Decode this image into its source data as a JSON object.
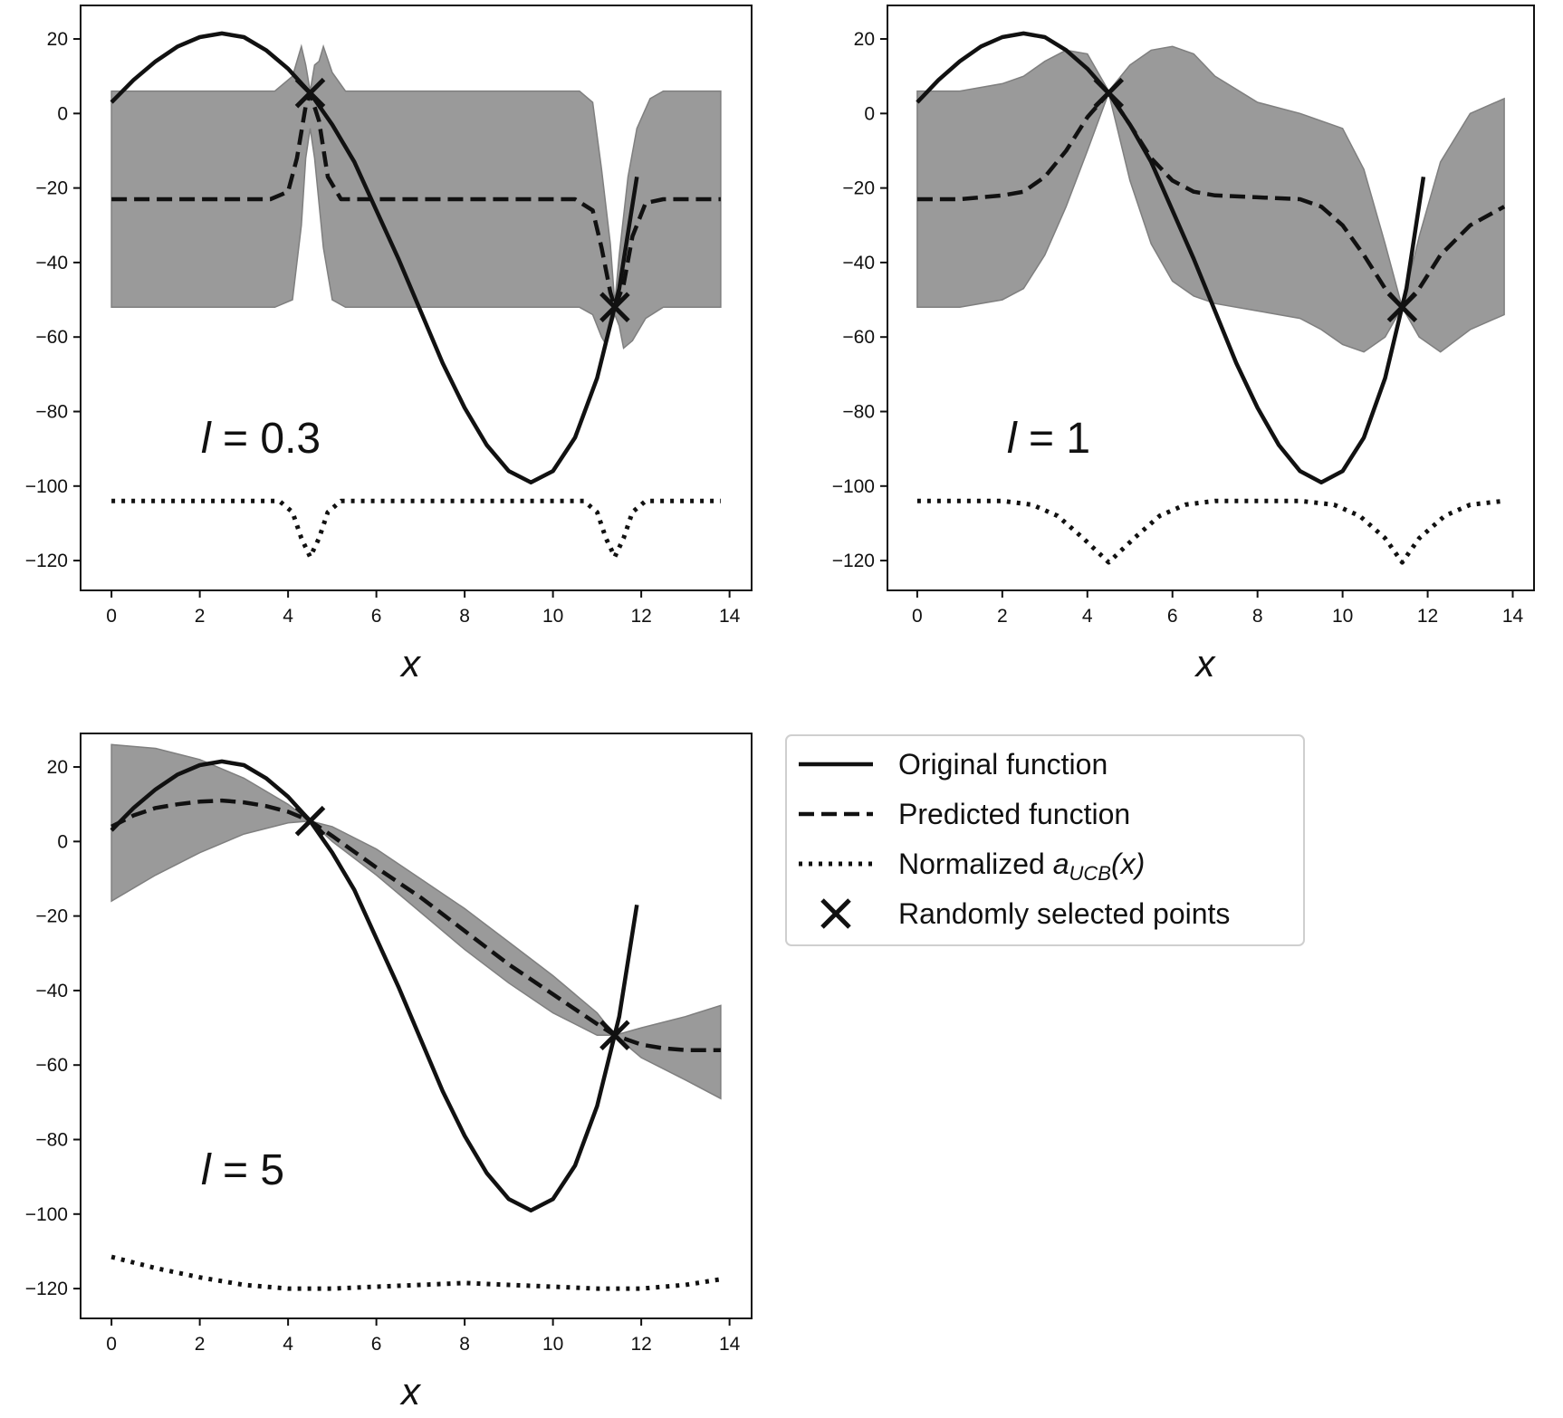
{
  "chart_data": {
    "type": "line",
    "layout": "2x2 grid of panels, legend in bottom-right cell",
    "xlabel": "x",
    "xlim": [
      -0.7,
      14.5
    ],
    "ylim": [
      -128,
      29
    ],
    "x_ticks": [
      0,
      2,
      4,
      6,
      8,
      10,
      12,
      14
    ],
    "y_ticks": [
      20,
      0,
      -20,
      -40,
      -60,
      -80,
      -100,
      -120
    ],
    "grid": false,
    "colors": {
      "line": "#111111",
      "band": "#9a9a9a",
      "band_edge": "#7f7f7f"
    },
    "legend": {
      "placement": "bottom-right cell",
      "entries": [
        {
          "label": "Original function",
          "style": "solid"
        },
        {
          "label": "Predicted function",
          "style": "dashed"
        },
        {
          "label_main": "Normalized ",
          "label_math": "a",
          "label_sub": "UCB",
          "label_tail": "(x)",
          "style": "dotted"
        },
        {
          "label": "Randomly selected points",
          "style": "x-marker"
        }
      ]
    },
    "original_function": {
      "style": "solid",
      "x": [
        0,
        0.5,
        1,
        1.5,
        2,
        2.5,
        3,
        3.5,
        4,
        4.5,
        5,
        5.5,
        6,
        6.5,
        7,
        7.5,
        8,
        8.5,
        9,
        9.5,
        10,
        10.5,
        11,
        11.5,
        11.9
      ],
      "y": [
        3,
        9,
        14,
        18,
        20.5,
        21.5,
        20.5,
        17,
        12,
        5.5,
        -3,
        -13,
        -26,
        -39,
        -53,
        -67,
        -79,
        -89,
        -96,
        -99,
        -96,
        -87,
        -71,
        -47,
        -17
      ]
    },
    "selected_points": {
      "marker": "x",
      "x": [
        4.5,
        11.4
      ],
      "y": [
        5.5,
        -52
      ]
    },
    "panels": [
      {
        "annotation_var": "l",
        "annotation_value": "= 0.3",
        "predicted": {
          "x": [
            0,
            3.6,
            4.0,
            4.2,
            4.4,
            4.5,
            4.7,
            4.9,
            5.2,
            6,
            10.5,
            10.9,
            11.1,
            11.3,
            11.4,
            11.6,
            11.8,
            12.1,
            12.5,
            13.8
          ],
          "y": [
            -23,
            -23,
            -21,
            -12,
            2,
            5.5,
            -2,
            -17,
            -23,
            -23,
            -23,
            -26,
            -36,
            -48,
            -52,
            -46,
            -33,
            -24,
            -23,
            -23
          ]
        },
        "band_upper": {
          "x": [
            0,
            3.7,
            4.1,
            4.3,
            4.4,
            4.5,
            4.6,
            4.7,
            4.8,
            5.0,
            5.3,
            10.6,
            10.9,
            11.1,
            11.3,
            11.4,
            11.5,
            11.7,
            11.9,
            12.2,
            12.5,
            13.8
          ],
          "y": [
            6,
            6,
            10,
            18,
            13,
            6,
            13,
            14,
            18,
            11,
            6,
            6,
            3,
            -15,
            -35,
            -51,
            -38,
            -17,
            -4,
            4,
            6,
            6
          ]
        },
        "band_lower": {
          "x": [
            0,
            3.7,
            4.1,
            4.3,
            4.4,
            4.5,
            4.6,
            4.8,
            5.0,
            5.3,
            10.6,
            10.9,
            11.1,
            11.2,
            11.4,
            11.5,
            11.6,
            11.8,
            12.1,
            12.5,
            13.8
          ],
          "y": [
            -52,
            -52,
            -50,
            -30,
            -12,
            -4,
            -12,
            -36,
            -50,
            -52,
            -52,
            -54,
            -60,
            -62,
            -54,
            -57,
            -63,
            -61,
            -55,
            -52,
            -52
          ]
        },
        "acquisition": {
          "style": "dotted",
          "x": [
            0,
            3.8,
            4.1,
            4.3,
            4.5,
            4.7,
            4.9,
            5.2,
            10.7,
            11.0,
            11.2,
            11.4,
            11.6,
            11.8,
            12.1,
            13.8
          ],
          "y": [
            -104,
            -104,
            -107,
            -114,
            -119,
            -114,
            -107,
            -104,
            -104,
            -107,
            -114,
            -119,
            -114,
            -107,
            -104,
            -104
          ]
        }
      },
      {
        "annotation_var": "l",
        "annotation_value": "= 1",
        "predicted": {
          "x": [
            0,
            1,
            2,
            2.5,
            3,
            3.5,
            4,
            4.5,
            5,
            5.5,
            6,
            6.5,
            7,
            8,
            9,
            9.5,
            10,
            10.5,
            11,
            11.4,
            11.8,
            12.3,
            13,
            13.8
          ],
          "y": [
            -23,
            -23,
            -22,
            -21,
            -17,
            -10,
            -1,
            5.5,
            -3,
            -12,
            -18,
            -21,
            -22,
            -22.5,
            -23,
            -25,
            -30,
            -38,
            -47,
            -52,
            -47,
            -38,
            -30,
            -25
          ]
        },
        "band_upper": {
          "x": [
            0,
            1,
            2,
            2.5,
            3,
            3.5,
            4,
            4.5,
            5,
            5.5,
            6,
            6.5,
            7,
            8,
            9,
            10,
            10.5,
            11,
            11.4,
            11.8,
            12.3,
            13,
            13.8
          ],
          "y": [
            6,
            6,
            8,
            10,
            14,
            17,
            16,
            6,
            13,
            17,
            18,
            16,
            10,
            3,
            0,
            -4,
            -15,
            -35,
            -52,
            -33,
            -13,
            0,
            4
          ]
        },
        "band_lower": {
          "x": [
            0,
            1,
            2,
            2.5,
            3,
            3.5,
            4,
            4.5,
            5,
            5.5,
            6,
            6.5,
            7,
            8,
            9,
            9.5,
            10,
            10.5,
            11,
            11.4,
            11.8,
            12.3,
            13,
            13.8
          ],
          "y": [
            -52,
            -52,
            -50,
            -47,
            -38,
            -25,
            -10,
            5.5,
            -18,
            -35,
            -45,
            -49,
            -51,
            -53,
            -55,
            -58,
            -62,
            -64,
            -60,
            -52,
            -60,
            -64,
            -58,
            -54
          ]
        },
        "acquisition": {
          "style": "dotted",
          "x": [
            0,
            2,
            2.7,
            3.3,
            3.9,
            4.5,
            5.1,
            5.7,
            6.3,
            7,
            9,
            9.8,
            10.4,
            11.0,
            11.4,
            11.8,
            12.4,
            13,
            13.8
          ],
          "y": [
            -104,
            -104,
            -105,
            -108,
            -114,
            -120.5,
            -114,
            -108,
            -105,
            -104,
            -104,
            -105,
            -108,
            -114,
            -120.5,
            -114,
            -108,
            -105,
            -104
          ]
        }
      },
      {
        "annotation_var": "l",
        "annotation_value": "= 5",
        "predicted": {
          "x": [
            0,
            0.5,
            1,
            1.5,
            2,
            2.5,
            3,
            3.5,
            4,
            4.5,
            5,
            6,
            7,
            8,
            9,
            10,
            10.5,
            11,
            11.4,
            12,
            12.5,
            13,
            13.8
          ],
          "y": [
            4,
            7,
            9,
            10,
            10.7,
            11,
            10.5,
            9.5,
            8,
            5.5,
            1.5,
            -7,
            -15,
            -24,
            -33,
            -41,
            -45,
            -49,
            -52,
            -54.5,
            -55.5,
            -56,
            -56
          ]
        },
        "band_upper": {
          "x": [
            0,
            1,
            2,
            3,
            4,
            4.5,
            5,
            6,
            7,
            8,
            9,
            10,
            11,
            11.4,
            12,
            13,
            13.8
          ],
          "y": [
            26,
            25,
            22,
            17,
            10,
            5.5,
            4,
            -2,
            -10,
            -18,
            -27,
            -36,
            -46,
            -52,
            -50,
            -47,
            -44
          ]
        },
        "band_lower": {
          "x": [
            0,
            1,
            2,
            3,
            4,
            4.5,
            5,
            6,
            7,
            8,
            9,
            10,
            11,
            11.4,
            12,
            13,
            13.8
          ],
          "y": [
            -16,
            -9,
            -3,
            2,
            5,
            5.5,
            0,
            -9,
            -19,
            -29,
            -38,
            -46,
            -52,
            -52,
            -58,
            -64,
            -69
          ]
        },
        "acquisition": {
          "style": "dotted",
          "x": [
            0,
            1,
            2,
            3,
            4,
            5,
            6,
            7,
            8,
            9,
            10,
            11,
            12,
            13,
            13.8
          ],
          "y": [
            -111.5,
            -114.5,
            -117,
            -119,
            -120,
            -120,
            -119.5,
            -119,
            -118.5,
            -119,
            -119.5,
            -120,
            -120,
            -119,
            -117.5
          ]
        }
      }
    ]
  }
}
